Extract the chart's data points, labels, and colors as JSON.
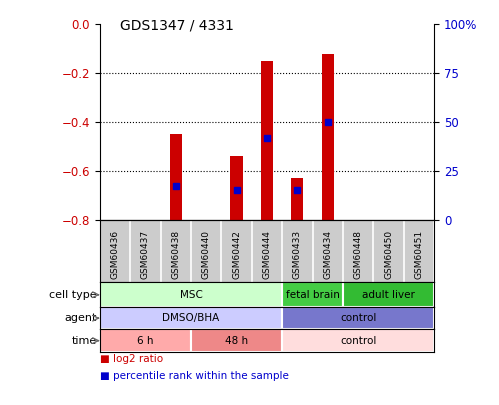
{
  "title": "GDS1347 / 4331",
  "samples": [
    "GSM60436",
    "GSM60437",
    "GSM60438",
    "GSM60440",
    "GSM60442",
    "GSM60444",
    "GSM60433",
    "GSM60434",
    "GSM60448",
    "GSM60450",
    "GSM60451"
  ],
  "log2_ratio": [
    0,
    0,
    -0.45,
    0,
    -0.54,
    -0.15,
    -0.63,
    -0.12,
    0,
    0,
    0
  ],
  "percentile_rank": [
    0,
    0,
    17,
    0,
    15,
    42,
    15,
    50,
    0,
    0,
    0
  ],
  "ylim_left": [
    -0.8,
    0
  ],
  "ylim_right": [
    0,
    100
  ],
  "yticks_left": [
    0,
    -0.2,
    -0.4,
    -0.6,
    -0.8
  ],
  "yticks_right": [
    0,
    25,
    50,
    75,
    100
  ],
  "bar_color": "#cc0000",
  "dot_color": "#0000cc",
  "cell_type_rows": [
    {
      "label": "MSC",
      "start": 0,
      "end": 6,
      "color": "#ccffcc"
    },
    {
      "label": "fetal brain",
      "start": 6,
      "end": 8,
      "color": "#44cc44"
    },
    {
      "label": "adult liver",
      "start": 8,
      "end": 11,
      "color": "#33bb33"
    }
  ],
  "agent_rows": [
    {
      "label": "DMSO/BHA",
      "start": 0,
      "end": 6,
      "color": "#ccccff"
    },
    {
      "label": "control",
      "start": 6,
      "end": 11,
      "color": "#7777cc"
    }
  ],
  "time_rows": [
    {
      "label": "6 h",
      "start": 0,
      "end": 3,
      "color": "#ffaaaa"
    },
    {
      "label": "48 h",
      "start": 3,
      "end": 6,
      "color": "#ee8888"
    },
    {
      "label": "control",
      "start": 6,
      "end": 11,
      "color": "#ffdddd"
    }
  ],
  "row_labels": [
    "cell type",
    "agent",
    "time"
  ],
  "legend_items": [
    {
      "color": "#cc0000",
      "label": "log2 ratio"
    },
    {
      "color": "#0000cc",
      "label": "percentile rank within the sample"
    }
  ],
  "background_color": "#ffffff",
  "plot_bg_color": "#ffffff",
  "tick_label_color_left": "#cc0000",
  "tick_label_color_right": "#0000cc",
  "bar_width": 0.4,
  "sample_bg": "#cccccc"
}
